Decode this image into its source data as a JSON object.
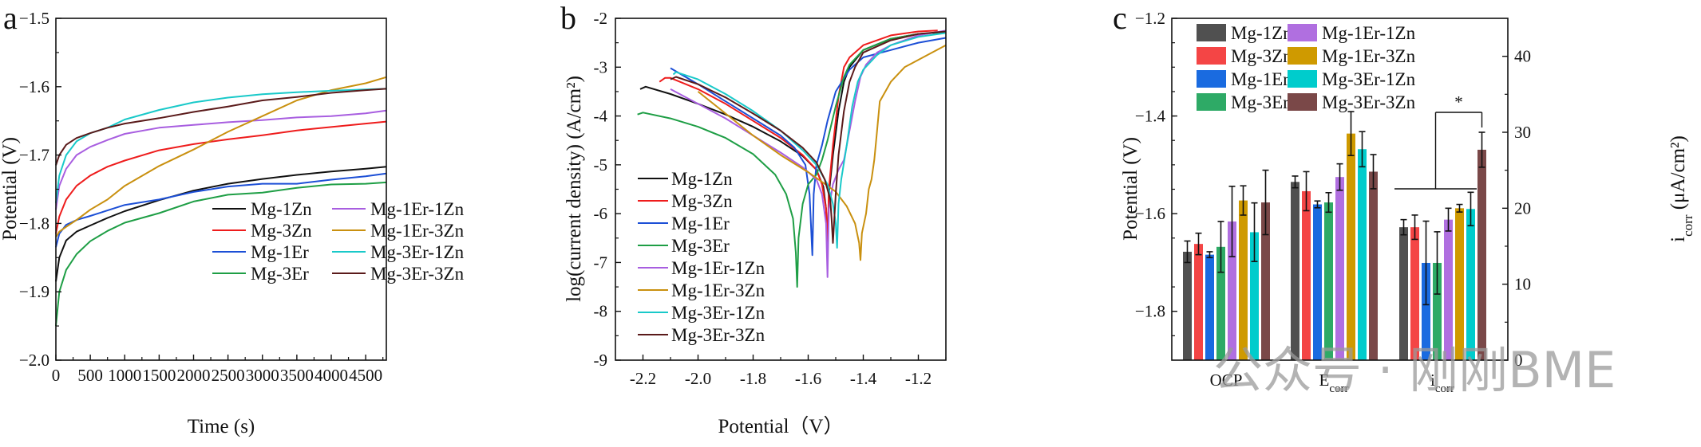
{
  "figure": {
    "watermark_text": "公众号 · 刚刚BME",
    "series_names": [
      "Mg-1Zn",
      "Mg-3Zn",
      "Mg-1Er",
      "Mg-3Er",
      "Mg-1Er-1Zn",
      "Mg-1Er-3Zn",
      "Mg-3Er-1Zn",
      "Mg-3Er-3Zn"
    ],
    "line_colors": {
      "Mg-1Zn": "#111111",
      "Mg-3Zn": "#ee1c1c",
      "Mg-1Er": "#1c4fd6",
      "Mg-3Er": "#1e9e45",
      "Mg-1Er-1Zn": "#a85ee0",
      "Mg-1Er-3Zn": "#c9900f",
      "Mg-3Er-1Zn": "#19c9c9",
      "Mg-3Er-3Zn": "#5a1a1a"
    },
    "bar_colors": {
      "Mg-1Zn": "#505050",
      "Mg-3Zn": "#f44545",
      "Mg-1Er": "#1a6be0",
      "Mg-3Er": "#2eaa66",
      "Mg-1Er-1Zn": "#b06fe0",
      "Mg-1Er-3Zn": "#cf9a00",
      "Mg-3Er-1Zn": "#00cccc",
      "Mg-3Er-3Zn": "#7a4848"
    }
  },
  "chart_data": [
    {
      "panel": "a",
      "type": "line",
      "title": "",
      "xlabel": "Time (s)",
      "ylabel": "Potential (V)",
      "xlim": [
        0,
        4800
      ],
      "ylim": [
        -2.0,
        -1.5
      ],
      "xticks": [
        0,
        500,
        1000,
        1500,
        2000,
        2500,
        3000,
        3500,
        4000,
        4500
      ],
      "xtick_labels": [
        "0",
        "500",
        "1000",
        "1500",
        "2000",
        "2500",
        "3000",
        "3500",
        "4000",
        "4500"
      ],
      "yticks": [
        -2.0,
        -1.9,
        -1.8,
        -1.7,
        -1.6,
        -1.5
      ],
      "ytick_labels": [
        "−2.0",
        "−1.9",
        "−1.8",
        "−1.7",
        "−1.6",
        "−1.5"
      ],
      "grid": false,
      "legend_position": "bottom-right",
      "legend_columns": 2,
      "x": [
        0,
        50,
        150,
        300,
        500,
        750,
        1000,
        1500,
        2000,
        2500,
        3000,
        3500,
        4000,
        4500,
        4800
      ],
      "series": [
        {
          "name": "Mg-1Zn",
          "values": [
            -1.885,
            -1.85,
            -1.825,
            -1.812,
            -1.803,
            -1.792,
            -1.782,
            -1.766,
            -1.752,
            -1.742,
            -1.735,
            -1.729,
            -1.724,
            -1.72,
            -1.717
          ]
        },
        {
          "name": "Mg-3Zn",
          "values": [
            -1.815,
            -1.79,
            -1.765,
            -1.745,
            -1.73,
            -1.717,
            -1.708,
            -1.693,
            -1.684,
            -1.677,
            -1.671,
            -1.664,
            -1.659,
            -1.654,
            -1.651
          ]
        },
        {
          "name": "Mg-1Er",
          "values": [
            -1.835,
            -1.815,
            -1.802,
            -1.795,
            -1.789,
            -1.781,
            -1.773,
            -1.765,
            -1.754,
            -1.746,
            -1.742,
            -1.742,
            -1.736,
            -1.731,
            -1.727
          ]
        },
        {
          "name": "Mg-3Er",
          "values": [
            -1.95,
            -1.9,
            -1.868,
            -1.845,
            -1.826,
            -1.811,
            -1.799,
            -1.785,
            -1.768,
            -1.758,
            -1.755,
            -1.748,
            -1.743,
            -1.742,
            -1.74
          ]
        },
        {
          "name": "Mg-1Er-1Zn",
          "values": [
            -1.78,
            -1.745,
            -1.72,
            -1.7,
            -1.688,
            -1.678,
            -1.669,
            -1.66,
            -1.656,
            -1.652,
            -1.649,
            -1.645,
            -1.643,
            -1.639,
            -1.635
          ]
        },
        {
          "name": "Mg-1Er-3Zn",
          "values": [
            -1.82,
            -1.812,
            -1.805,
            -1.795,
            -1.78,
            -1.765,
            -1.745,
            -1.716,
            -1.692,
            -1.666,
            -1.643,
            -1.62,
            -1.605,
            -1.595,
            -1.586
          ]
        },
        {
          "name": "Mg-3Er-1Zn",
          "values": [
            -1.77,
            -1.73,
            -1.7,
            -1.68,
            -1.668,
            -1.66,
            -1.648,
            -1.634,
            -1.623,
            -1.616,
            -1.611,
            -1.608,
            -1.606,
            -1.604,
            -1.603
          ]
        },
        {
          "name": "Mg-3Er-3Zn",
          "values": [
            -1.715,
            -1.7,
            -1.685,
            -1.675,
            -1.668,
            -1.66,
            -1.654,
            -1.646,
            -1.637,
            -1.629,
            -1.62,
            -1.615,
            -1.609,
            -1.605,
            -1.603
          ]
        }
      ]
    },
    {
      "panel": "b",
      "type": "line",
      "title": "",
      "xlabel": "Potential（V）",
      "ylabel": "log(current density) (A/cm²)",
      "xlim": [
        -2.3,
        -1.1
      ],
      "ylim": [
        -9,
        -2
      ],
      "xticks": [
        -2.2,
        -2.0,
        -1.8,
        -1.6,
        -1.4,
        -1.2
      ],
      "xtick_labels": [
        "-2.2",
        "-2.0",
        "-1.8",
        "-1.6",
        "-1.4",
        "-1.2"
      ],
      "yticks": [
        -9,
        -8,
        -7,
        -6,
        -5,
        -4,
        -3,
        -2
      ],
      "ytick_labels": [
        "-9",
        "-8",
        "-7",
        "-6",
        "-5",
        "-4",
        "-3",
        "-2"
      ],
      "grid": false,
      "legend_position": "bottom-left",
      "legend_columns": 1,
      "series": [
        {
          "name": "Mg-1Zn",
          "x": [
            -2.21,
            -2.19,
            -2.1,
            -2.0,
            -1.9,
            -1.8,
            -1.7,
            -1.62,
            -1.57,
            -1.545,
            -1.535,
            -1.53,
            -1.525,
            -1.51,
            -1.49,
            -1.47,
            -1.45,
            -1.4,
            -1.3,
            -1.2,
            -1.1
          ],
          "y": [
            -3.45,
            -3.4,
            -3.55,
            -3.75,
            -3.97,
            -4.22,
            -4.52,
            -4.82,
            -5.1,
            -5.45,
            -5.9,
            -6.8,
            -5.6,
            -4.8,
            -3.9,
            -3.3,
            -3.0,
            -2.65,
            -2.42,
            -2.32,
            -2.28
          ]
        },
        {
          "name": "Mg-3Zn",
          "x": [
            -2.14,
            -2.12,
            -2.1,
            -2.0,
            -1.9,
            -1.8,
            -1.7,
            -1.62,
            -1.57,
            -1.55,
            -1.535,
            -1.53,
            -1.525,
            -1.51,
            -1.49,
            -1.47,
            -1.45,
            -1.4,
            -1.3,
            -1.2,
            -1.13
          ],
          "y": [
            -3.3,
            -3.22,
            -3.22,
            -3.45,
            -3.75,
            -4.1,
            -4.45,
            -4.8,
            -5.1,
            -5.4,
            -5.9,
            -6.75,
            -5.5,
            -4.6,
            -3.6,
            -3.0,
            -2.8,
            -2.55,
            -2.35,
            -2.27,
            -2.25
          ]
        },
        {
          "name": "Mg-1Er",
          "x": [
            -2.1,
            -2.0,
            -1.9,
            -1.8,
            -1.7,
            -1.65,
            -1.61,
            -1.595,
            -1.585,
            -1.58,
            -1.57,
            -1.55,
            -1.53,
            -1.5,
            -1.45,
            -1.4,
            -1.3,
            -1.2,
            -1.1
          ],
          "y": [
            -3.02,
            -3.35,
            -3.7,
            -4.05,
            -4.4,
            -4.65,
            -5.0,
            -5.6,
            -6.85,
            -5.6,
            -5.0,
            -4.6,
            -4.1,
            -3.5,
            -3.05,
            -2.8,
            -2.65,
            -2.5,
            -2.4
          ]
        },
        {
          "name": "Mg-3Er",
          "x": [
            -2.22,
            -2.2,
            -2.1,
            -2.0,
            -1.9,
            -1.8,
            -1.72,
            -1.68,
            -1.655,
            -1.645,
            -1.64,
            -1.635,
            -1.62,
            -1.6,
            -1.57,
            -1.55,
            -1.53,
            -1.5,
            -1.47,
            -1.45,
            -1.4,
            -1.3,
            -1.2,
            -1.1
          ],
          "y": [
            -3.97,
            -3.93,
            -4.05,
            -4.22,
            -4.45,
            -4.78,
            -5.2,
            -5.6,
            -6.1,
            -6.8,
            -7.5,
            -6.5,
            -5.8,
            -5.4,
            -5.2,
            -4.9,
            -4.5,
            -3.8,
            -3.2,
            -2.95,
            -2.65,
            -2.42,
            -2.32,
            -2.28
          ]
        },
        {
          "name": "Mg-1Er-1Zn",
          "x": [
            -2.1,
            -2.0,
            -1.9,
            -1.8,
            -1.7,
            -1.62,
            -1.57,
            -1.55,
            -1.535,
            -1.53,
            -1.525,
            -1.51,
            -1.49,
            -1.47,
            -1.45,
            -1.43,
            -1.41,
            -1.39,
            -1.35,
            -1.3,
            -1.2,
            -1.1
          ],
          "y": [
            -3.45,
            -3.75,
            -4.05,
            -4.4,
            -4.75,
            -5.05,
            -5.3,
            -5.6,
            -6.2,
            -7.3,
            -5.9,
            -5.4,
            -5.1,
            -4.9,
            -4.3,
            -3.7,
            -3.2,
            -2.95,
            -2.7,
            -2.55,
            -2.35,
            -2.25
          ]
        },
        {
          "name": "Mg-1Er-3Zn",
          "x": [
            -2.0,
            -1.9,
            -1.8,
            -1.7,
            -1.6,
            -1.55,
            -1.5,
            -1.46,
            -1.43,
            -1.415,
            -1.41,
            -1.405,
            -1.39,
            -1.38,
            -1.37,
            -1.36,
            -1.35,
            -1.34,
            -1.3,
            -1.25,
            -1.2,
            -1.15,
            -1.1
          ],
          "y": [
            -3.5,
            -3.95,
            -4.4,
            -4.8,
            -5.15,
            -5.35,
            -5.55,
            -5.85,
            -6.2,
            -6.6,
            -6.95,
            -6.4,
            -6.0,
            -5.5,
            -5.3,
            -4.9,
            -4.3,
            -3.7,
            -3.3,
            -3.0,
            -2.85,
            -2.7,
            -2.55
          ]
        },
        {
          "name": "Mg-3Er-1Zn",
          "x": [
            -2.09,
            -2.08,
            -2.0,
            -1.9,
            -1.8,
            -1.7,
            -1.62,
            -1.57,
            -1.53,
            -1.51,
            -1.5,
            -1.495,
            -1.49,
            -1.48,
            -1.46,
            -1.44,
            -1.42,
            -1.4,
            -1.35,
            -1.3,
            -1.2,
            -1.1
          ],
          "y": [
            -3.15,
            -3.1,
            -3.25,
            -3.55,
            -3.9,
            -4.3,
            -4.7,
            -5.0,
            -5.4,
            -5.8,
            -6.2,
            -6.7,
            -5.8,
            -5.3,
            -4.6,
            -3.8,
            -3.3,
            -3.05,
            -2.75,
            -2.55,
            -2.38,
            -2.3
          ]
        },
        {
          "name": "Mg-3Er-3Zn",
          "x": [
            -2.1,
            -2.08,
            -2.0,
            -1.9,
            -1.8,
            -1.7,
            -1.62,
            -1.57,
            -1.54,
            -1.52,
            -1.515,
            -1.51,
            -1.5,
            -1.49,
            -1.47,
            -1.45,
            -1.43,
            -1.4,
            -1.3,
            -1.2,
            -1.1
          ],
          "y": [
            -3.25,
            -3.2,
            -3.35,
            -3.62,
            -3.95,
            -4.3,
            -4.65,
            -4.95,
            -5.3,
            -5.7,
            -6.1,
            -6.6,
            -5.6,
            -4.8,
            -3.9,
            -3.3,
            -3.0,
            -2.7,
            -2.45,
            -2.32,
            -2.27
          ]
        }
      ]
    },
    {
      "panel": "c",
      "type": "bar",
      "title": "",
      "categories": [
        "OCP",
        "E_corr",
        "i_corr"
      ],
      "category_labels": [
        {
          "main": "OCP",
          "sub": ""
        },
        {
          "main": "E",
          "sub": "corr"
        },
        {
          "main": "i",
          "sub": "corr"
        }
      ],
      "xlabel": "",
      "ylabel": "Potential (V)",
      "ylabel_right": {
        "main": "i",
        "sub": "corr",
        "rest": " (μA/cm²)"
      },
      "ylim": [
        -1.9,
        -1.2
      ],
      "ylim_right": [
        0,
        45
      ],
      "yticks": [
        -1.8,
        -1.6,
        -1.4,
        -1.2
      ],
      "ytick_labels": [
        "−1.8",
        "−1.6",
        "−1.4",
        "−1.2"
      ],
      "yticks_right": [
        0,
        10,
        20,
        30,
        40
      ],
      "ytick_labels_right": [
        "0",
        "10",
        "20",
        "30",
        "40"
      ],
      "grid": false,
      "legend_position": "top-left",
      "legend_columns": 2,
      "significance": {
        "label": "*",
        "between": "Mg-3Er-3Zn vs other alloys (i_corr)"
      },
      "series": [
        {
          "name": "Mg-1Zn",
          "values": [
            -1.678,
            -1.535,
            17.5
          ],
          "errors": [
            0.022,
            0.012,
            1.0
          ]
        },
        {
          "name": "Mg-3Zn",
          "values": [
            -1.662,
            -1.554,
            17.5
          ],
          "errors": [
            0.022,
            0.04,
            1.6
          ]
        },
        {
          "name": "Mg-1Er",
          "values": [
            -1.684,
            -1.581,
            12.8
          ],
          "errors": [
            0.006,
            0.007,
            5.5
          ]
        },
        {
          "name": "Mg-3Er",
          "values": [
            -1.668,
            -1.577,
            12.8
          ],
          "errors": [
            0.052,
            0.02,
            4.1
          ]
        },
        {
          "name": "Mg-1Er-1Zn",
          "values": [
            -1.616,
            -1.525,
            18.5
          ],
          "errors": [
            0.072,
            0.027,
            1.5
          ]
        },
        {
          "name": "Mg-1Er-3Zn",
          "values": [
            -1.573,
            -1.436,
            20.0
          ],
          "errors": [
            0.03,
            0.045,
            0.5
          ]
        },
        {
          "name": "Mg-3Er-1Zn",
          "values": [
            -1.638,
            -1.468,
            19.9
          ],
          "errors": [
            0.06,
            0.036,
            2.2
          ]
        },
        {
          "name": "Mg-3Er-3Zn",
          "values": [
            -1.577,
            -1.514,
            27.7
          ],
          "errors": [
            0.066,
            0.035,
            2.3
          ]
        }
      ]
    }
  ],
  "panels": {
    "a": {
      "letter": "a"
    },
    "b": {
      "letter": "b"
    },
    "c": {
      "letter": "c"
    }
  }
}
